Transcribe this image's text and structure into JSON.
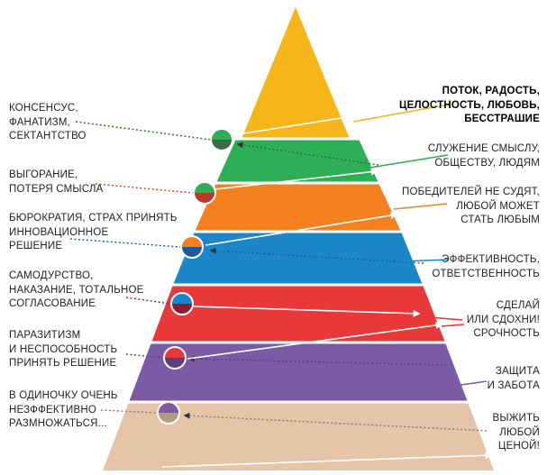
{
  "colors": {
    "yellow": "#F6B619",
    "green": "#2FAE58",
    "orange": "#F38120",
    "blue": "#1B86C8",
    "red": "#E8383A",
    "purple": "#7B5AA6",
    "beige": "#E5C4A8",
    "dark_green": "#3B6B45",
    "dark_red": "#B73A2A",
    "dark_blue": "#1E5A97",
    "dark_crimson": "#8E1C2E",
    "dark_purple": "#5A3F7E",
    "dark_beige": "#B59A84"
  },
  "left_labels": [
    {
      "lines": [
        "КОНСЕНСУС,",
        "ФАНАТИЗМ,",
        "СЕКТАНТСТВО"
      ]
    },
    {
      "lines": [
        "ВЫГОРАНИЕ,",
        "ПОТЕРЯ СМЫСЛА"
      ]
    },
    {
      "lines": [
        "БЮРОКРАТИЯ, СТРАХ ПРИНЯТЬ",
        "ИННОВАЦИОННОЕ",
        "РЕШЕНИЕ"
      ]
    },
    {
      "lines": [
        "САМОДУРСТВО,",
        "НАКАЗАНИЕ, ТОТАЛЬНОЕ",
        "СОГЛАСОВАНИЕ"
      ]
    },
    {
      "lines": [
        "ПАРАЗИТИЗМ",
        "И НЕСПОСОБНОСТЬ",
        "ПРИНЯТЬ РЕШЕНИЕ"
      ]
    },
    {
      "lines": [
        "В ОДИНОЧКУ ОЧЕНЬ",
        "НЕЗФФЕКТИВНО",
        "РАЗМНОЖАТЬСЯ..."
      ]
    }
  ],
  "right_labels": [
    {
      "lines": [
        "ПОТОК, РАДОСТЬ,",
        "ЦЕЛОСТНОСТЬ, ЛЮБОВЬ,",
        "БЕССТРАШИЕ"
      ]
    },
    {
      "lines": [
        "СЛУЖЕНИЕ СМЫСЛУ,",
        "ОБЩЕСТВУ, ЛЮДЯМ"
      ]
    },
    {
      "lines": [
        "ПОБЕДИТЕЛЕЙ НЕ СУДЯТ,",
        "ЛЮБОЙ МОЖЕТ",
        "СТАТЬ ЛЮБЫМ"
      ]
    },
    {
      "lines": [
        "ЭФФЕКТИВНОСТЬ,",
        "ОТВЕТСТВЕННОСТЬ"
      ]
    },
    {
      "lines": [
        "СДЕЛАЙ",
        "ИЛИ СДОХНИ!",
        "СРОЧНОСТЬ"
      ]
    },
    {
      "lines": [
        "ЗАЩИТА",
        "И ЗАБОТА"
      ]
    },
    {
      "lines": [
        "ВЫЖИТЬ",
        "ЛЮБОЙ",
        "ЦЕНОЙ!"
      ]
    }
  ]
}
